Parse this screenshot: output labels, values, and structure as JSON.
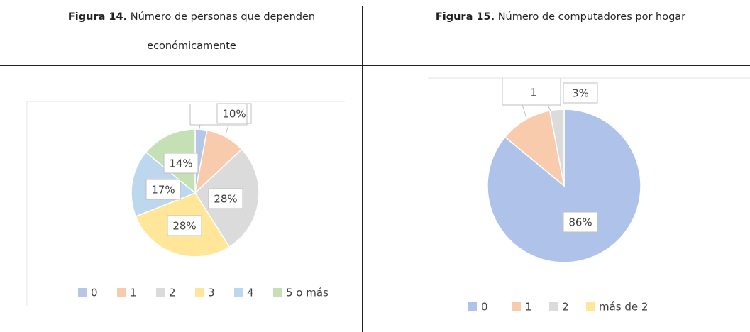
{
  "chart_data": [
    {
      "type": "pie",
      "figure_label": "Figura 14.",
      "title": "Número de personas que dependen económicamente",
      "categories": [
        "0",
        "1",
        "2",
        "3",
        "4",
        "5 o más"
      ],
      "values": [
        3,
        10,
        28,
        28,
        17,
        14
      ],
      "value_labels": [
        null,
        "10%",
        "28%",
        "28%",
        "17%",
        "14%"
      ],
      "colors": [
        "#b4c7e7",
        "#f8cbad",
        "#dbdbdb",
        "#ffe699",
        "#bdd7ee",
        "#c5e0b4"
      ]
    },
    {
      "type": "pie",
      "figure_label": "Figura 15.",
      "title": "Número de computadores por hogar",
      "categories": [
        "0",
        "1",
        "2",
        "más de 2"
      ],
      "values": [
        86,
        11,
        3,
        0
      ],
      "value_labels": [
        "86%",
        null,
        "3%",
        null
      ],
      "annotation": "1",
      "colors": [
        "#afc3ea",
        "#f8cbad",
        "#dbdbdb",
        "#ffe699"
      ]
    }
  ]
}
